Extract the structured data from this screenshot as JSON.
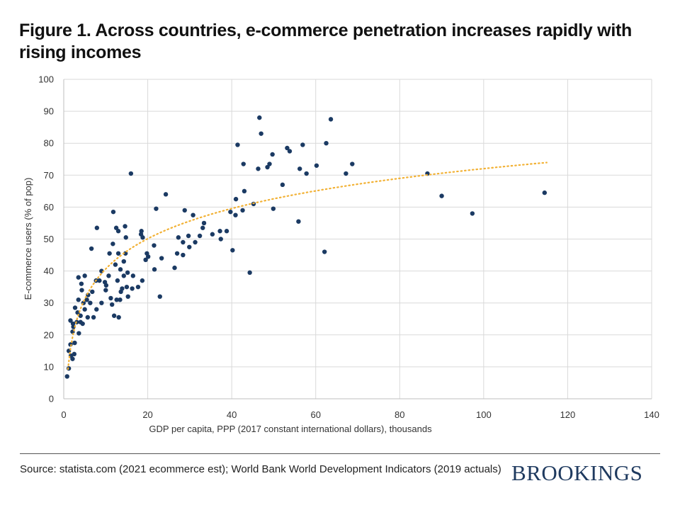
{
  "title": "Figure 1. Across countries, e-commerce penetration increases rapidly with rising incomes",
  "source": "Source: statista.com (2021 ecommerce est); World Bank World Development Indicators (2019 actuals)",
  "brand": "BROOKINGS",
  "colors": {
    "points": "#1b3a63",
    "trend": "#f2b134",
    "grid": "#d9d9d9",
    "axis": "#bfbfbf"
  },
  "chart_data": {
    "type": "scatter",
    "title": "Figure 1. Across countries, e-commerce penetration increases rapidly with rising incomes",
    "xlabel": "GDP per capita, PPP (2017 constant international dollars), thousands",
    "ylabel": "E-commerce users (% of pop)",
    "xlim": [
      0,
      140
    ],
    "ylim": [
      0,
      100
    ],
    "xticks": [
      0,
      20,
      40,
      60,
      80,
      100,
      120,
      140
    ],
    "yticks": [
      0,
      10,
      20,
      30,
      40,
      50,
      60,
      70,
      80,
      90,
      100
    ],
    "grid": true,
    "trendline": {
      "type": "logarithmic",
      "style": "dotted",
      "x_range": [
        1,
        115
      ],
      "coef_a": 13.63,
      "coef_b": 9.28
    },
    "points": [
      [
        0.8,
        7
      ],
      [
        1.2,
        9.5
      ],
      [
        1.2,
        15
      ],
      [
        1.6,
        24.5
      ],
      [
        1.6,
        17
      ],
      [
        1.7,
        13.5
      ],
      [
        2.1,
        12.5
      ],
      [
        2.1,
        21
      ],
      [
        2.2,
        23.5
      ],
      [
        2.3,
        22.5
      ],
      [
        2.5,
        14
      ],
      [
        2.6,
        17.5
      ],
      [
        2.7,
        28.5
      ],
      [
        3.1,
        24
      ],
      [
        3.3,
        27
      ],
      [
        3.5,
        38
      ],
      [
        3.5,
        31
      ],
      [
        3.6,
        20.5
      ],
      [
        4.0,
        26
      ],
      [
        4.0,
        24
      ],
      [
        4.2,
        36
      ],
      [
        4.3,
        34
      ],
      [
        4.5,
        23.5
      ],
      [
        4.7,
        30
      ],
      [
        5.0,
        38.5
      ],
      [
        5.0,
        28
      ],
      [
        5.5,
        31
      ],
      [
        5.7,
        25.5
      ],
      [
        5.8,
        32.5
      ],
      [
        6.3,
        30
      ],
      [
        6.6,
        47
      ],
      [
        6.8,
        33.5
      ],
      [
        7.1,
        25.5
      ],
      [
        7.7,
        37
      ],
      [
        7.8,
        28
      ],
      [
        7.9,
        53.5
      ],
      [
        8.5,
        37
      ],
      [
        9.0,
        30
      ],
      [
        9.0,
        40
      ],
      [
        9.8,
        36.5
      ],
      [
        10.0,
        34
      ],
      [
        10.1,
        35.5
      ],
      [
        10.7,
        38.5
      ],
      [
        10.9,
        45.5
      ],
      [
        11.2,
        31.5
      ],
      [
        11.5,
        29.5
      ],
      [
        11.7,
        48.5
      ],
      [
        11.8,
        58.5
      ],
      [
        12.0,
        26
      ],
      [
        12.3,
        42
      ],
      [
        12.5,
        53.5
      ],
      [
        12.6,
        31
      ],
      [
        12.8,
        37
      ],
      [
        13.0,
        45.5
      ],
      [
        13.0,
        52.5
      ],
      [
        13.1,
        25.5
      ],
      [
        13.4,
        31
      ],
      [
        13.5,
        40.5
      ],
      [
        13.6,
        33.5
      ],
      [
        13.9,
        34.5
      ],
      [
        14.3,
        38.5
      ],
      [
        14.3,
        43
      ],
      [
        14.6,
        54
      ],
      [
        14.7,
        45.5
      ],
      [
        14.8,
        50.5
      ],
      [
        15.0,
        35
      ],
      [
        15.2,
        39.5
      ],
      [
        15.3,
        32
      ],
      [
        16.0,
        70.5
      ],
      [
        16.3,
        34.5
      ],
      [
        16.5,
        38.5
      ],
      [
        17.7,
        35
      ],
      [
        18.4,
        51.5
      ],
      [
        18.5,
        52.5
      ],
      [
        18.7,
        37
      ],
      [
        18.8,
        50.5
      ],
      [
        19.5,
        43.5
      ],
      [
        19.8,
        45.5
      ],
      [
        20.1,
        44.5
      ],
      [
        21.5,
        48
      ],
      [
        21.6,
        40.5
      ],
      [
        22.0,
        59.5
      ],
      [
        22.9,
        32
      ],
      [
        23.3,
        44
      ],
      [
        24.3,
        64
      ],
      [
        26.4,
        41
      ],
      [
        27.0,
        45.5
      ],
      [
        27.3,
        50.5
      ],
      [
        28.4,
        49
      ],
      [
        28.4,
        45
      ],
      [
        28.8,
        59
      ],
      [
        29.7,
        51
      ],
      [
        29.9,
        47.5
      ],
      [
        30.8,
        57.5
      ],
      [
        31.3,
        49
      ],
      [
        32.4,
        51
      ],
      [
        33.1,
        53.5
      ],
      [
        33.4,
        55
      ],
      [
        35.4,
        51.5
      ],
      [
        37.2,
        52.5
      ],
      [
        37.4,
        50
      ],
      [
        38.8,
        52.5
      ],
      [
        39.7,
        58.5
      ],
      [
        40.2,
        46.5
      ],
      [
        40.9,
        57.5
      ],
      [
        41.0,
        62.5
      ],
      [
        41.4,
        79.5
      ],
      [
        42.6,
        59
      ],
      [
        42.8,
        73.5
      ],
      [
        43.0,
        65
      ],
      [
        44.3,
        39.5
      ],
      [
        45.2,
        61
      ],
      [
        46.3,
        72
      ],
      [
        46.6,
        88
      ],
      [
        47.0,
        83
      ],
      [
        48.5,
        72.5
      ],
      [
        49.0,
        73.5
      ],
      [
        49.7,
        76.5
      ],
      [
        49.9,
        59.5
      ],
      [
        52.1,
        67
      ],
      [
        53.2,
        78.5
      ],
      [
        53.8,
        77.5
      ],
      [
        55.9,
        55.5
      ],
      [
        56.2,
        72
      ],
      [
        56.9,
        79.5
      ],
      [
        57.8,
        70.5
      ],
      [
        60.2,
        73
      ],
      [
        62.1,
        46
      ],
      [
        62.5,
        80
      ],
      [
        63.6,
        87.5
      ],
      [
        67.2,
        70.5
      ],
      [
        68.7,
        73.5
      ],
      [
        86.6,
        70.5
      ],
      [
        90.0,
        63.5
      ],
      [
        97.3,
        58
      ],
      [
        114.5,
        64.5
      ]
    ]
  }
}
